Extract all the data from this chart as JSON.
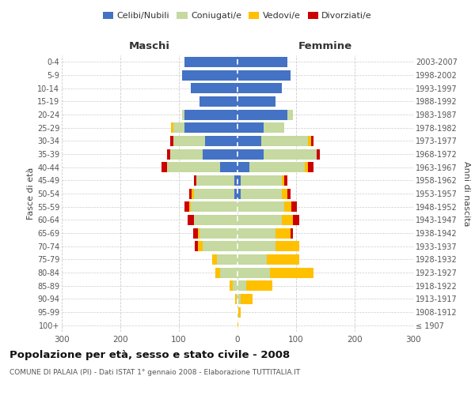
{
  "age_groups": [
    "100+",
    "95-99",
    "90-94",
    "85-89",
    "80-84",
    "75-79",
    "70-74",
    "65-69",
    "60-64",
    "55-59",
    "50-54",
    "45-49",
    "40-44",
    "35-39",
    "30-34",
    "25-29",
    "20-24",
    "15-19",
    "10-14",
    "5-9",
    "0-4"
  ],
  "birth_years": [
    "≤ 1907",
    "1908-1912",
    "1913-1917",
    "1918-1922",
    "1923-1927",
    "1928-1932",
    "1933-1937",
    "1938-1942",
    "1943-1947",
    "1948-1952",
    "1953-1957",
    "1958-1962",
    "1963-1967",
    "1968-1972",
    "1973-1977",
    "1978-1982",
    "1983-1987",
    "1988-1992",
    "1993-1997",
    "1998-2002",
    "2003-2007"
  ],
  "maschi": {
    "celibi": [
      0,
      0,
      0,
      0,
      0,
      0,
      0,
      0,
      0,
      0,
      5,
      5,
      30,
      60,
      55,
      90,
      90,
      65,
      80,
      95,
      90
    ],
    "coniugati": [
      0,
      0,
      2,
      8,
      30,
      35,
      60,
      65,
      75,
      80,
      70,
      65,
      90,
      55,
      55,
      20,
      5,
      0,
      0,
      0,
      0
    ],
    "vedovi": [
      0,
      0,
      2,
      5,
      8,
      8,
      8,
      3,
      0,
      3,
      3,
      0,
      0,
      0,
      0,
      3,
      0,
      0,
      0,
      0,
      0
    ],
    "divorziati": [
      0,
      0,
      0,
      0,
      0,
      0,
      5,
      8,
      10,
      8,
      5,
      5,
      10,
      5,
      5,
      0,
      0,
      0,
      0,
      0,
      0
    ]
  },
  "femmine": {
    "nubili": [
      0,
      0,
      0,
      0,
      0,
      0,
      0,
      0,
      0,
      0,
      5,
      5,
      20,
      45,
      40,
      45,
      85,
      65,
      75,
      90,
      85
    ],
    "coniugate": [
      0,
      2,
      5,
      15,
      55,
      50,
      65,
      65,
      75,
      80,
      70,
      70,
      95,
      90,
      80,
      35,
      10,
      0,
      0,
      0,
      0
    ],
    "vedove": [
      2,
      3,
      20,
      45,
      75,
      55,
      40,
      25,
      20,
      12,
      10,
      5,
      5,
      0,
      5,
      0,
      0,
      0,
      0,
      0,
      0
    ],
    "divorziate": [
      0,
      0,
      0,
      0,
      0,
      0,
      0,
      5,
      10,
      10,
      5,
      5,
      10,
      5,
      5,
      0,
      0,
      0,
      0,
      0,
      0
    ]
  },
  "colors": {
    "celibi": "#4472c4",
    "coniugati": "#c5d9a0",
    "vedovi": "#ffc000",
    "divorziati": "#cc0000"
  },
  "title": "Popolazione per età, sesso e stato civile - 2008",
  "subtitle": "COMUNE DI PALAIA (PI) - Dati ISTAT 1° gennaio 2008 - Elaborazione TUTTITALIA.IT",
  "xlabel_left": "Maschi",
  "xlabel_right": "Femmine",
  "ylabel_left": "Fasce di età",
  "ylabel_right": "Anni di nascita",
  "xlim": 300,
  "bg_color": "#ffffff",
  "grid_color": "#cccccc"
}
